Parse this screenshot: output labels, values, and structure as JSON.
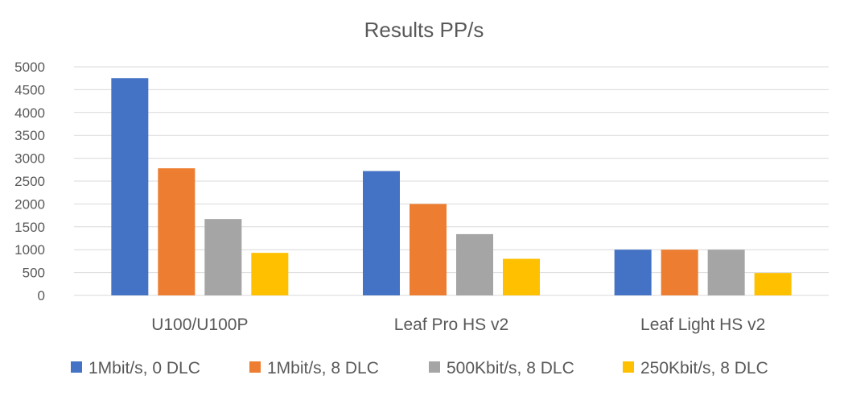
{
  "chart_data": {
    "type": "bar",
    "title": "Results PP/s",
    "xlabel": "",
    "ylabel": "",
    "categories": [
      "U100/U100P",
      "Leaf Pro HS v2",
      "Leaf Light HS v2"
    ],
    "series": [
      {
        "name": "1Mbit/s, 0 DLC",
        "color": "#4472c4",
        "values": [
          4750,
          2720,
          1000
        ]
      },
      {
        "name": "1Mbit/s, 8 DLC",
        "color": "#ed7d31",
        "values": [
          2780,
          2000,
          1000
        ]
      },
      {
        "name": "500Kbit/s, 8 DLC",
        "color": "#a5a5a5",
        "values": [
          1670,
          1340,
          1000
        ]
      },
      {
        "name": "250Kbit/s, 8 DLC",
        "color": "#ffc000",
        "values": [
          930,
          800,
          490
        ]
      }
    ],
    "ylim": [
      0,
      5000
    ],
    "yticks": [
      0,
      500,
      1000,
      1500,
      2000,
      2500,
      3000,
      3500,
      4000,
      4500,
      5000
    ],
    "grid": true,
    "legend_position": "bottom"
  }
}
